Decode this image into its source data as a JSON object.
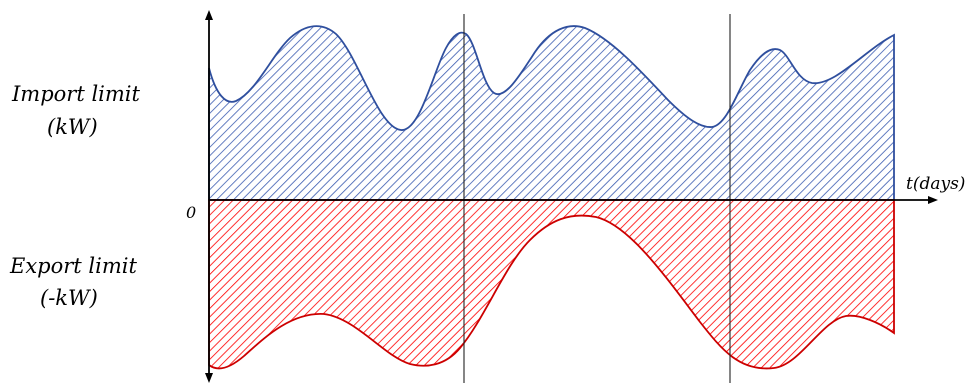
{
  "labels": {
    "import_line1": "Import limit",
    "import_line2": "(kW)",
    "export_line1": "Export limit",
    "export_line2": "(-kW)",
    "zero": "0",
    "time_axis": "t(days)"
  },
  "colors": {
    "import_fill": "#3a5bb0",
    "import_outline": "#2f4f9e",
    "export_fill": "#ff0000",
    "export_outline": "#cc0000",
    "axis": "#000000",
    "divider": "#222222"
  },
  "series": {
    "import_limit": {
      "hatch": "diagonal"
    },
    "export_limit": {
      "hatch": "diagonal"
    }
  },
  "day_dividers": 2
}
